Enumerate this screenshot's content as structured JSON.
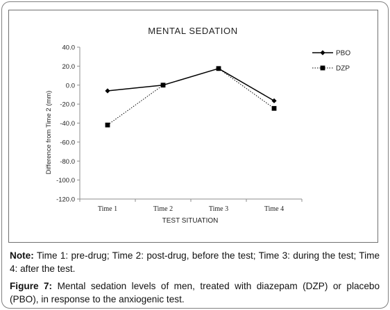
{
  "chart_data": {
    "type": "line",
    "title": "MENTAL SEDATION",
    "xlabel": "TEST SITUATION",
    "ylabel": "Difference from Time 2 (mm)",
    "categories": [
      "Time 1",
      "Time 2",
      "Time 3",
      "Time 4"
    ],
    "ylim": [
      -120,
      40
    ],
    "yticks": [
      "40.0",
      "20.0",
      "0.0",
      "-20.0",
      "-40.0",
      "-60.0",
      "-80.0",
      "-100.0",
      "-120.0"
    ],
    "grid": false,
    "legend_position": "top-right",
    "series": [
      {
        "name": "PBO",
        "values": [
          -6,
          0,
          17.5,
          -16.5
        ],
        "color": "#000000",
        "line": "solid",
        "marker": "diamond"
      },
      {
        "name": "DZP",
        "values": [
          -42,
          0,
          17.5,
          -24.5
        ],
        "color": "#000000",
        "line": "dotted",
        "marker": "square"
      }
    ]
  },
  "note": {
    "label": "Note:",
    "text": "Time 1: pre-drug; Time 2: post-drug, before the test; Time 3: during the test; Time 4: after the test."
  },
  "caption": {
    "label": "Figure 7:",
    "text": "Mental sedation levels of men, treated with diazepam (DZP) or placebo (PBO), in response to the anxiogenic test."
  }
}
